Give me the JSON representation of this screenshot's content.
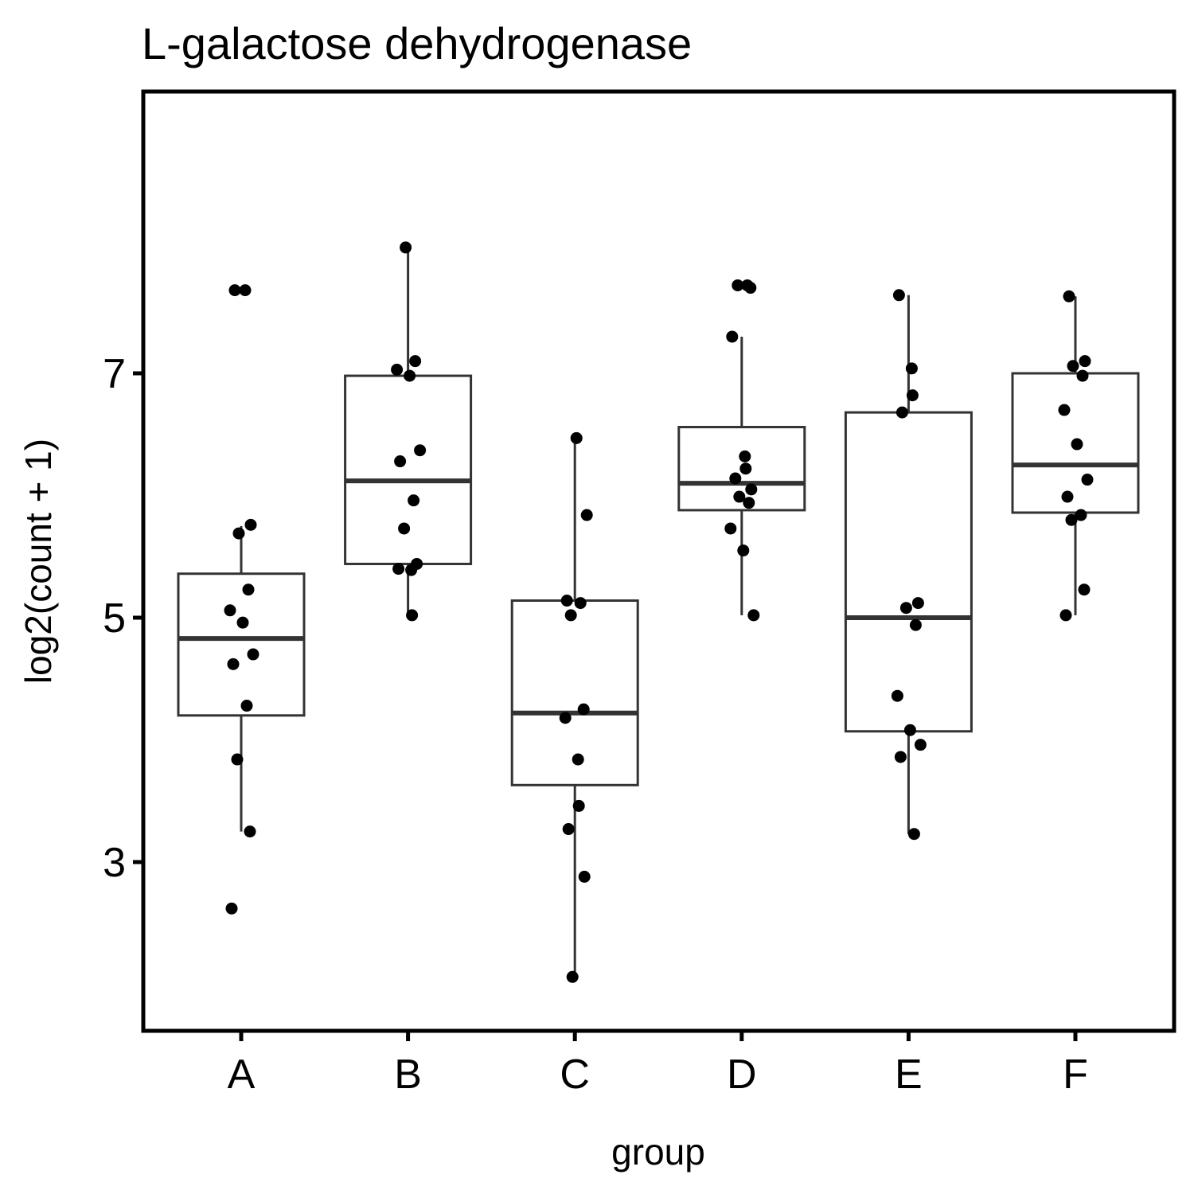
{
  "chart_data": {
    "type": "box",
    "title": "L-galactose dehydrogenase",
    "xlabel": "group",
    "ylabel": "log2(count + 1)",
    "categories": [
      "A",
      "B",
      "C",
      "D",
      "E",
      "F"
    ],
    "y_ticks": [
      3,
      5,
      7
    ],
    "ylim": [
      1.8,
      8.35
    ],
    "grid": false,
    "legend": "none",
    "colors": {
      "box": "#333333",
      "point": "#000000",
      "frame": "#000000"
    },
    "boxes": [
      {
        "group": "A",
        "whisker_low": 3.25,
        "q1": 4.2,
        "median": 4.83,
        "q3": 5.36,
        "whisker_high": 5.75
      },
      {
        "group": "B",
        "whisker_low": 5.02,
        "q1": 5.44,
        "median": 6.12,
        "q3": 6.98,
        "whisker_high": 8.03
      },
      {
        "group": "C",
        "whisker_low": 2.06,
        "q1": 3.63,
        "median": 4.22,
        "q3": 5.14,
        "whisker_high": 6.47
      },
      {
        "group": "D",
        "whisker_low": 5.02,
        "q1": 5.88,
        "median": 6.1,
        "q3": 6.56,
        "whisker_high": 7.3
      },
      {
        "group": "E",
        "whisker_low": 3.23,
        "q1": 4.07,
        "median": 5.0,
        "q3": 6.68,
        "whisker_high": 7.64
      },
      {
        "group": "F",
        "whisker_low": 5.02,
        "q1": 5.86,
        "median": 6.25,
        "q3": 7.0,
        "whisker_high": 7.63
      }
    ],
    "points": [
      {
        "group": "A",
        "values": [
          7.68,
          7.68,
          5.76,
          5.69,
          5.23,
          5.06,
          4.96,
          4.7,
          4.62,
          4.28,
          3.84,
          3.25,
          2.62
        ]
      },
      {
        "group": "B",
        "values": [
          8.03,
          7.1,
          7.03,
          6.98,
          6.37,
          6.28,
          5.96,
          5.73,
          5.44,
          5.4,
          5.39,
          5.02
        ]
      },
      {
        "group": "C",
        "values": [
          6.47,
          5.84,
          5.14,
          5.12,
          5.02,
          4.25,
          4.18,
          3.84,
          3.46,
          3.27,
          2.88,
          2.06
        ]
      },
      {
        "group": "D",
        "values": [
          7.72,
          7.72,
          7.7,
          7.3,
          6.32,
          6.22,
          6.14,
          6.05,
          5.99,
          5.94,
          5.73,
          5.55,
          5.02
        ]
      },
      {
        "group": "E",
        "values": [
          7.64,
          7.04,
          6.82,
          6.68,
          5.12,
          5.08,
          4.94,
          4.36,
          4.08,
          3.96,
          3.86,
          3.23
        ]
      },
      {
        "group": "F",
        "values": [
          7.63,
          7.1,
          7.06,
          6.98,
          6.7,
          6.42,
          6.13,
          5.99,
          5.84,
          5.8,
          5.23,
          5.02
        ]
      }
    ]
  }
}
